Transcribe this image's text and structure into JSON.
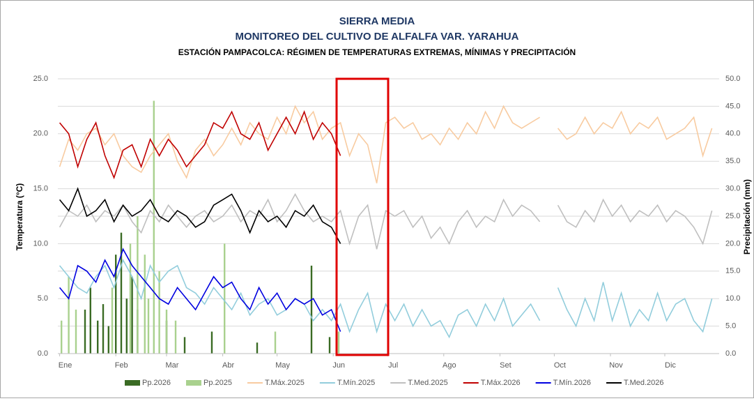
{
  "chart_data": {
    "type": "line",
    "title": "SIERRA MEDIA",
    "title2": "MONITOREO DEL CULTIVO DE ALFALFA VAR. YARAHUA",
    "subtitle": "ESTACIÓN PAMPACOLCA: RÉGIMEN DE TEMPERATURAS EXTREMAS, MÍNIMAS Y PRECIPITACIÓN",
    "ylabel": "Temperatura (°C)",
    "y2label": "Precipitación (mm)",
    "xlim": [
      0,
      365
    ],
    "xticks": [
      {
        "value": 1,
        "label": "Ene"
      },
      {
        "value": 32,
        "label": "Feb"
      },
      {
        "value": 60,
        "label": "Mar"
      },
      {
        "value": 91,
        "label": "Abr"
      },
      {
        "value": 121,
        "label": "May"
      },
      {
        "value": 152,
        "label": "Jun"
      },
      {
        "value": 182,
        "label": "Jul"
      },
      {
        "value": 213,
        "label": "Ago"
      },
      {
        "value": 244,
        "label": "Set"
      },
      {
        "value": 274,
        "label": "Oct"
      },
      {
        "value": 305,
        "label": "Nov"
      },
      {
        "value": 335,
        "label": "Dic"
      }
    ],
    "ylim": [
      0,
      25
    ],
    "yticks": [
      {
        "value": 0,
        "label": "0.0"
      },
      {
        "value": 5,
        "label": "5.0"
      },
      {
        "value": 10,
        "label": "10.0"
      },
      {
        "value": 15,
        "label": "15.0"
      },
      {
        "value": 20,
        "label": "20.0"
      },
      {
        "value": 25,
        "label": "25.0"
      }
    ],
    "y2lim": [
      0,
      50
    ],
    "y2ticks": [
      {
        "value": 0,
        "label": "0.0"
      },
      {
        "value": 5,
        "label": "5.0"
      },
      {
        "value": 10,
        "label": "10.0"
      },
      {
        "value": 15,
        "label": "15.0"
      },
      {
        "value": 20,
        "label": "20.0"
      },
      {
        "value": 25,
        "label": "25.0"
      },
      {
        "value": 30,
        "label": "30.0"
      },
      {
        "value": 35,
        "label": "35.0"
      },
      {
        "value": 40,
        "label": "40.0"
      },
      {
        "value": 45,
        "label": "45.0"
      },
      {
        "value": 50,
        "label": "50.0"
      }
    ],
    "grid": true,
    "series": [
      {
        "name": "Pp.2026",
        "type": "bar",
        "axis": "y2",
        "color": "#3a6b24",
        "x": [
          15,
          18,
          22,
          25,
          28,
          32,
          35,
          38,
          41,
          44,
          60,
          70,
          85,
          110,
          140,
          150
        ],
        "values": [
          8,
          12,
          6,
          9,
          5,
          18,
          22,
          10,
          14,
          8,
          6,
          3,
          4,
          2,
          16,
          3
        ]
      },
      {
        "name": "Pp.2025",
        "type": "bar",
        "axis": "y2",
        "color": "#a9d18e",
        "x": [
          2,
          6,
          10,
          30,
          40,
          44,
          48,
          50,
          53,
          56,
          60,
          65,
          92,
          120,
          155
        ],
        "values": [
          6,
          14,
          8,
          12,
          20,
          25,
          18,
          10,
          46,
          15,
          8,
          6,
          20,
          4,
          4
        ]
      },
      {
        "name": "T.Máx.2025",
        "type": "line",
        "color": "#f8cba0",
        "x": [
          1,
          6,
          11,
          16,
          21,
          26,
          31,
          36,
          41,
          46,
          51,
          56,
          61,
          66,
          71,
          76,
          81,
          86,
          91,
          96,
          101,
          106,
          111,
          116,
          121,
          126,
          131,
          136,
          141,
          146,
          151,
          156,
          161,
          166,
          171,
          176,
          181,
          186,
          191,
          196,
          201,
          206,
          211,
          216,
          221,
          226,
          231,
          236,
          241,
          246,
          251,
          256,
          261,
          266,
          271,
          276,
          281,
          286,
          291,
          296,
          301,
          306,
          311,
          316,
          321,
          326,
          331,
          336,
          341,
          346,
          351,
          356,
          361
        ],
        "values": [
          17,
          19.5,
          18.5,
          20,
          20.5,
          19,
          20,
          18,
          17,
          16.5,
          18,
          19,
          20,
          17.5,
          16,
          18.5,
          19.5,
          18,
          19,
          20.5,
          19,
          21,
          20,
          19.5,
          21.5,
          20,
          22.5,
          21,
          22,
          19.5,
          20.5,
          21,
          18,
          20,
          19,
          15.5,
          21,
          21.5,
          20.5,
          21,
          19.5,
          20,
          19,
          20.5,
          19.5,
          21,
          20,
          22,
          20.5,
          22.5,
          21,
          20.5,
          21,
          21.5,
          null,
          20.5,
          19.5,
          20,
          21.5,
          20,
          21,
          20.5,
          22,
          20,
          21,
          20.5,
          21.5,
          19.5,
          20,
          20.5,
          21.5,
          18,
          20.5
        ]
      },
      {
        "name": "T.Mín.2025",
        "type": "line",
        "color": "#92cddc",
        "x": [
          1,
          6,
          11,
          16,
          21,
          26,
          31,
          36,
          41,
          46,
          51,
          56,
          61,
          66,
          71,
          76,
          81,
          86,
          91,
          96,
          101,
          106,
          111,
          116,
          121,
          126,
          131,
          136,
          141,
          146,
          151,
          156,
          161,
          166,
          171,
          176,
          181,
          186,
          191,
          196,
          201,
          206,
          211,
          216,
          221,
          226,
          231,
          236,
          241,
          246,
          251,
          256,
          261,
          266,
          271,
          276,
          281,
          286,
          291,
          296,
          301,
          306,
          311,
          316,
          321,
          326,
          331,
          336,
          341,
          346,
          351,
          356,
          361
        ],
        "values": [
          8,
          7,
          6,
          5.5,
          7,
          8,
          6,
          8.5,
          7,
          5,
          8,
          6.5,
          7.5,
          8,
          6,
          5.5,
          4.5,
          6,
          5,
          4,
          5.5,
          3.5,
          4.5,
          5,
          3.5,
          4,
          5,
          4.5,
          3,
          4,
          3,
          4.5,
          2,
          4,
          5.5,
          2,
          4.5,
          3,
          4.5,
          2.5,
          4,
          2.5,
          3,
          1.5,
          3.5,
          4,
          2.5,
          4.5,
          3,
          5,
          2.5,
          3.5,
          4.5,
          3,
          null,
          6,
          4,
          2.5,
          5,
          3,
          6.5,
          3,
          5.5,
          2.5,
          4,
          3,
          5.5,
          3,
          4.5,
          5,
          3,
          2,
          5
        ]
      },
      {
        "name": "T.Med.2025",
        "type": "line",
        "color": "#bfbfbf",
        "x": [
          1,
          6,
          11,
          16,
          21,
          26,
          31,
          36,
          41,
          46,
          51,
          56,
          61,
          66,
          71,
          76,
          81,
          86,
          91,
          96,
          101,
          106,
          111,
          116,
          121,
          126,
          131,
          136,
          141,
          146,
          151,
          156,
          161,
          166,
          171,
          176,
          181,
          186,
          191,
          196,
          201,
          206,
          211,
          216,
          221,
          226,
          231,
          236,
          241,
          246,
          251,
          256,
          261,
          266,
          271,
          276,
          281,
          286,
          291,
          296,
          301,
          306,
          311,
          316,
          321,
          326,
          331,
          336,
          341,
          346,
          351,
          356,
          361
        ],
        "values": [
          11.5,
          13,
          12.5,
          13.5,
          12,
          13,
          12.5,
          13.5,
          12,
          11,
          13,
          12,
          13.5,
          12.5,
          11.5,
          12.5,
          13,
          12,
          12.5,
          13.5,
          12,
          13,
          12.5,
          14,
          12,
          13,
          14.5,
          13,
          12,
          12.5,
          12,
          13,
          10,
          12.5,
          13.5,
          9.5,
          13,
          12.5,
          13,
          11.5,
          12.5,
          10.5,
          11.5,
          10,
          12,
          13,
          11.5,
          12.5,
          12,
          14,
          12.5,
          13.5,
          13,
          12,
          null,
          13.5,
          12,
          11.5,
          13,
          12,
          14,
          12.5,
          13.5,
          12,
          13,
          12.5,
          13.5,
          12,
          13,
          12.5,
          11.5,
          10,
          13
        ]
      },
      {
        "name": "T.Máx.2026",
        "type": "line",
        "color": "#c00000",
        "x": [
          1,
          6,
          11,
          16,
          21,
          26,
          31,
          36,
          41,
          46,
          51,
          56,
          61,
          66,
          71,
          76,
          81,
          86,
          91,
          96,
          101,
          106,
          111,
          116,
          121,
          126,
          131,
          136,
          141,
          146,
          151,
          156
        ],
        "values": [
          21,
          20,
          17,
          19.5,
          21,
          18,
          16,
          18.5,
          19,
          17,
          19.5,
          18,
          19.5,
          18.5,
          17,
          18,
          19,
          21,
          20.5,
          22,
          20,
          19.5,
          21,
          18.5,
          20,
          21.5,
          20,
          22,
          19.5,
          21,
          20,
          18
        ]
      },
      {
        "name": "T.Mín.2026",
        "type": "line",
        "color": "#0000e0",
        "x": [
          1,
          6,
          11,
          16,
          21,
          26,
          31,
          36,
          41,
          46,
          51,
          56,
          61,
          66,
          71,
          76,
          81,
          86,
          91,
          96,
          101,
          106,
          111,
          116,
          121,
          126,
          131,
          136,
          141,
          146,
          151,
          156
        ],
        "values": [
          6,
          5,
          8,
          7.5,
          6.5,
          8.5,
          7,
          9.5,
          8,
          7,
          6,
          5,
          4.5,
          6,
          5,
          4,
          5.5,
          7,
          6,
          6.5,
          5,
          4,
          6,
          4.5,
          5.5,
          4,
          5,
          4.5,
          5,
          3.5,
          4,
          2
        ]
      },
      {
        "name": "T.Med.2026",
        "type": "line",
        "color": "#000000",
        "x": [
          1,
          6,
          11,
          16,
          21,
          26,
          31,
          36,
          41,
          46,
          51,
          56,
          61,
          66,
          71,
          76,
          81,
          86,
          91,
          96,
          101,
          106,
          111,
          116,
          121,
          126,
          131,
          136,
          141,
          146,
          151,
          156
        ],
        "values": [
          14,
          13,
          15,
          12.5,
          13,
          14,
          12,
          13.5,
          12.5,
          13,
          14,
          12.5,
          12,
          13,
          12.5,
          11.5,
          12,
          13.5,
          14,
          14.5,
          13,
          11,
          13,
          12,
          12.5,
          11.5,
          13,
          12.5,
          13.5,
          12,
          11.5,
          10
        ]
      }
    ]
  }
}
